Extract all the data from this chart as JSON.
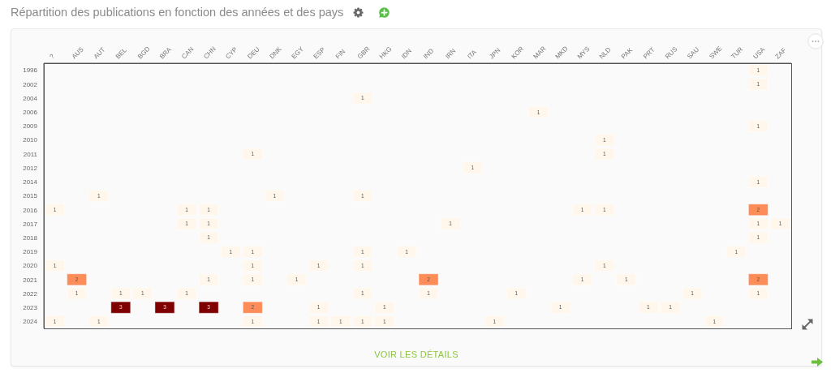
{
  "chart_data": {
    "type": "heatmap",
    "title": "Répartition des publications en fonction des années et des pays",
    "categories": [
      "?",
      "AUS",
      "AUT",
      "BEL",
      "BGD",
      "BRA",
      "CAN",
      "CHN",
      "CYP",
      "DEU",
      "DNK",
      "EGY",
      "ESP",
      "FIN",
      "GBR",
      "HKG",
      "IDN",
      "IND",
      "IRN",
      "ITA",
      "JPN",
      "KOR",
      "MAR",
      "MKD",
      "MYS",
      "NLD",
      "PAK",
      "PRT",
      "RUS",
      "SAU",
      "SWE",
      "TUR",
      "USA",
      "ZAF"
    ],
    "y_categories": [
      "1996",
      "2002",
      "2004",
      "2006",
      "2009",
      "2010",
      "2011",
      "2012",
      "2014",
      "2015",
      "2016",
      "2017",
      "2018",
      "2019",
      "2020",
      "2021",
      "2022",
      "2023",
      "2024"
    ],
    "cells": [
      [
        null,
        null,
        null,
        null,
        null,
        null,
        null,
        null,
        null,
        null,
        null,
        null,
        null,
        null,
        null,
        null,
        null,
        null,
        null,
        null,
        null,
        null,
        null,
        null,
        null,
        null,
        null,
        null,
        null,
        null,
        null,
        null,
        1,
        null
      ],
      [
        null,
        null,
        null,
        null,
        null,
        null,
        null,
        null,
        null,
        null,
        null,
        null,
        null,
        null,
        null,
        null,
        null,
        null,
        null,
        null,
        null,
        null,
        null,
        null,
        null,
        null,
        null,
        null,
        null,
        null,
        null,
        null,
        1,
        null
      ],
      [
        null,
        null,
        null,
        null,
        null,
        null,
        null,
        null,
        null,
        null,
        null,
        null,
        null,
        null,
        1,
        null,
        null,
        null,
        null,
        null,
        null,
        null,
        null,
        null,
        null,
        null,
        null,
        null,
        null,
        null,
        null,
        null,
        null,
        null
      ],
      [
        null,
        null,
        null,
        null,
        null,
        null,
        null,
        null,
        null,
        null,
        null,
        null,
        null,
        null,
        null,
        null,
        null,
        null,
        null,
        null,
        null,
        null,
        1,
        null,
        null,
        null,
        null,
        null,
        null,
        null,
        null,
        null,
        null,
        null
      ],
      [
        null,
        null,
        null,
        null,
        null,
        null,
        null,
        null,
        null,
        null,
        null,
        null,
        null,
        null,
        null,
        null,
        null,
        null,
        null,
        null,
        null,
        null,
        null,
        null,
        null,
        null,
        null,
        null,
        null,
        null,
        null,
        null,
        1,
        null
      ],
      [
        null,
        null,
        null,
        null,
        null,
        null,
        null,
        null,
        null,
        null,
        null,
        null,
        null,
        null,
        null,
        null,
        null,
        null,
        null,
        null,
        null,
        null,
        null,
        null,
        null,
        1,
        null,
        null,
        null,
        null,
        null,
        null,
        null,
        null
      ],
      [
        null,
        null,
        null,
        null,
        null,
        null,
        null,
        null,
        null,
        1,
        null,
        null,
        null,
        null,
        null,
        null,
        null,
        null,
        null,
        null,
        null,
        null,
        null,
        null,
        null,
        1,
        null,
        null,
        null,
        null,
        null,
        null,
        null,
        null
      ],
      [
        null,
        null,
        null,
        null,
        null,
        null,
        null,
        null,
        null,
        null,
        null,
        null,
        null,
        null,
        null,
        null,
        null,
        null,
        null,
        1,
        null,
        null,
        null,
        null,
        null,
        null,
        null,
        null,
        null,
        null,
        null,
        null,
        null,
        null
      ],
      [
        null,
        null,
        null,
        null,
        null,
        null,
        null,
        null,
        null,
        null,
        null,
        null,
        null,
        null,
        null,
        null,
        null,
        null,
        null,
        null,
        null,
        null,
        null,
        null,
        null,
        null,
        null,
        null,
        null,
        null,
        null,
        null,
        1,
        null
      ],
      [
        null,
        null,
        1,
        null,
        null,
        null,
        null,
        null,
        null,
        null,
        1,
        null,
        null,
        null,
        1,
        null,
        null,
        null,
        null,
        null,
        null,
        null,
        null,
        null,
        null,
        null,
        null,
        null,
        null,
        null,
        null,
        null,
        null,
        null
      ],
      [
        1,
        null,
        null,
        null,
        null,
        null,
        1,
        1,
        null,
        null,
        null,
        null,
        null,
        null,
        null,
        null,
        null,
        null,
        null,
        null,
        null,
        null,
        null,
        null,
        1,
        1,
        null,
        null,
        null,
        null,
        null,
        null,
        2,
        null
      ],
      [
        null,
        null,
        null,
        null,
        null,
        null,
        1,
        1,
        null,
        null,
        null,
        null,
        null,
        null,
        null,
        null,
        null,
        null,
        1,
        null,
        null,
        null,
        null,
        null,
        null,
        null,
        null,
        null,
        null,
        null,
        null,
        null,
        1,
        1
      ],
      [
        null,
        null,
        null,
        null,
        null,
        null,
        null,
        1,
        null,
        null,
        null,
        null,
        null,
        null,
        null,
        null,
        null,
        null,
        null,
        null,
        null,
        null,
        null,
        null,
        null,
        null,
        null,
        null,
        null,
        null,
        null,
        null,
        1,
        null
      ],
      [
        null,
        null,
        null,
        null,
        null,
        null,
        null,
        null,
        1,
        1,
        null,
        null,
        null,
        null,
        1,
        null,
        1,
        null,
        null,
        null,
        null,
        null,
        null,
        null,
        null,
        null,
        null,
        null,
        null,
        null,
        null,
        1,
        null,
        null
      ],
      [
        1,
        null,
        null,
        null,
        null,
        null,
        null,
        null,
        null,
        1,
        null,
        null,
        1,
        null,
        1,
        null,
        null,
        null,
        null,
        null,
        null,
        null,
        null,
        null,
        null,
        1,
        null,
        null,
        null,
        null,
        null,
        null,
        null,
        null
      ],
      [
        null,
        2,
        null,
        null,
        null,
        null,
        null,
        1,
        null,
        1,
        null,
        1,
        null,
        null,
        null,
        null,
        null,
        2,
        null,
        null,
        null,
        null,
        null,
        null,
        1,
        null,
        1,
        null,
        null,
        null,
        null,
        null,
        2,
        null
      ],
      [
        null,
        1,
        null,
        1,
        1,
        null,
        1,
        null,
        null,
        null,
        null,
        null,
        null,
        null,
        1,
        null,
        null,
        1,
        null,
        null,
        null,
        1,
        null,
        null,
        null,
        null,
        null,
        null,
        null,
        1,
        null,
        null,
        1,
        null
      ],
      [
        null,
        null,
        null,
        3,
        null,
        3,
        null,
        3,
        null,
        2,
        null,
        null,
        1,
        null,
        null,
        1,
        null,
        null,
        null,
        null,
        null,
        null,
        null,
        1,
        null,
        null,
        null,
        1,
        1,
        null,
        null,
        null,
        null,
        null
      ],
      [
        1,
        null,
        1,
        null,
        null,
        null,
        null,
        null,
        null,
        1,
        null,
        null,
        1,
        1,
        1,
        1,
        null,
        null,
        null,
        null,
        1,
        null,
        null,
        null,
        null,
        null,
        null,
        null,
        null,
        null,
        1,
        null,
        null,
        null
      ]
    ],
    "data_labels": true,
    "annotations": [
      "VOIR LES DÉTAILS"
    ]
  }
}
